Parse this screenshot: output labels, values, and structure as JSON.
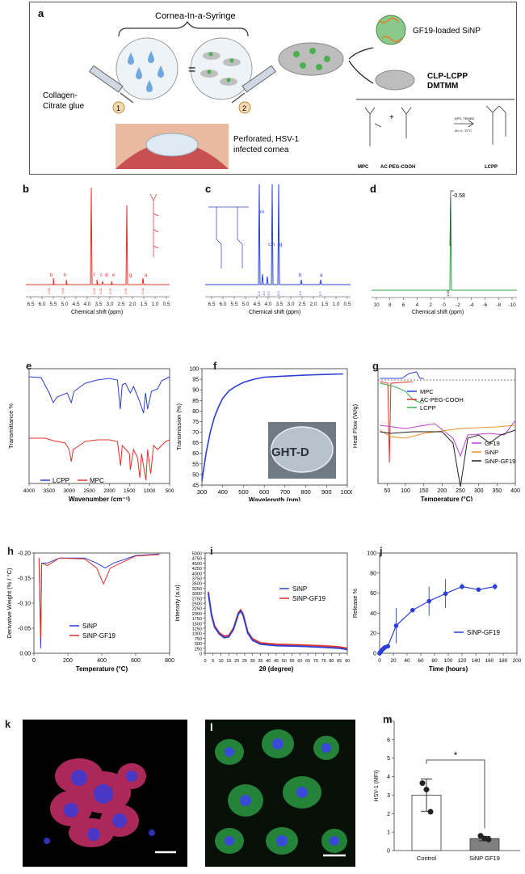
{
  "panel_a": {
    "label": "a",
    "title": "Cornea-In-a-Syringe",
    "collagen_label_1": "Collagen-",
    "collagen_label_2": "Citrate glue",
    "step1": "1",
    "step2": "2",
    "cornea_caption_1": "Perforated, HSV-1",
    "cornea_caption_2": "infected cornea",
    "sinp_label": "GF19-loaded SiNP",
    "clp_label_1": "CLP-LCPP",
    "clp_label_2": "DMTMM",
    "mpc": "MPC",
    "acpeg": "AC-PEG-COOH",
    "lcpp": "LCPP",
    "reaction_1": "APS, TEMED",
    "reaction_2": "2h r.t., 37°C",
    "equals": "="
  },
  "nmr_b": {
    "label": "b",
    "xlabel": "Chemical shift (ppm)",
    "ticks": [
      "6.5",
      "6.0",
      "5.5",
      "5.0",
      "4.5",
      "4.0",
      "3.5",
      "3.0",
      "2.5",
      "2.0",
      "1.5",
      "1.0",
      "0.5"
    ],
    "peak_letters": [
      "b",
      "h",
      "f",
      "c",
      "d",
      "e",
      "g",
      "a"
    ],
    "integrals": [
      "1.04",
      "1.04",
      "2.09",
      "2.01",
      "2.07",
      "2.01",
      "2.04"
    ]
  },
  "nmr_c": {
    "label": "c",
    "xlabel": "Chemical shift (ppm)",
    "ticks": [
      "6.5",
      "6.0",
      "5.5",
      "5.0",
      "4.5",
      "4.0",
      "3.5",
      "3.0",
      "2.5",
      "2.0",
      "1.5",
      "1.0",
      "0.5"
    ],
    "peak_letters": [
      "m",
      "c,h",
      "g",
      "b",
      "a"
    ],
    "integrals": [
      "2.4",
      "1.0",
      "2.5",
      "9.0",
      "1.0",
      "0.7"
    ]
  },
  "nmr_d": {
    "label": "d",
    "peak_label": "-0.58",
    "xlabel": "Chemical shift (ppm)",
    "ticks": [
      "10",
      "8",
      "6",
      "4",
      "2",
      "0",
      "-2",
      "-4",
      "-6",
      "-8",
      "-10"
    ],
    "integral": "1.00"
  },
  "chart_data": [
    {
      "id": "e",
      "type": "line",
      "title": "",
      "xlabel": "Wavenumber (cm⁻¹)",
      "ylabel": "Transmittance %",
      "xlim": [
        4000,
        500
      ],
      "xticks": [
        "4000",
        "3500",
        "3000",
        "2500",
        "2000",
        "1500",
        "1000",
        "500"
      ],
      "series": [
        {
          "name": "LCPP",
          "color": "#2b3fd6"
        },
        {
          "name": "MPC",
          "color": "#e0302a"
        }
      ]
    },
    {
      "id": "f",
      "type": "line",
      "title": "",
      "xlabel": "Wavelength (nm)",
      "ylabel": "Transmission (%)",
      "xlim": [
        300,
        1000
      ],
      "ylim": [
        45,
        100
      ],
      "xticks": [
        "300",
        "400",
        "500",
        "600",
        "700",
        "800",
        "900",
        "1000"
      ],
      "yticks": [
        "45",
        "50",
        "55",
        "60",
        "65",
        "70",
        "75",
        "80",
        "85",
        "90",
        "95",
        "100"
      ],
      "x": [
        300,
        320,
        340,
        360,
        380,
        400,
        430,
        460,
        500,
        550,
        600,
        700,
        800,
        900,
        980
      ],
      "values": [
        47,
        60,
        70,
        77,
        82,
        86,
        89.5,
        91.5,
        93.5,
        95,
        96,
        96.5,
        97,
        97.3,
        97.5
      ],
      "inset_text": "GHT-D",
      "series": [
        {
          "name": "transmission",
          "color": "#2b3fd6"
        }
      ]
    },
    {
      "id": "g",
      "type": "line",
      "title": "",
      "xlabel": "Temperature (°C)",
      "ylabel": "Heat Flow (W/g)",
      "xlim": [
        25,
        400
      ],
      "xticks": [
        "50",
        "100",
        "150",
        "200",
        "250",
        "300",
        "350",
        "400"
      ],
      "series": [
        {
          "name": "MPC",
          "color": "#2b3fd6"
        },
        {
          "name": "AC-PEG-COOH",
          "color": "#e0302a"
        },
        {
          "name": "LCPP",
          "color": "#35b34a"
        },
        {
          "name": "GF19",
          "color": "#c040d0"
        },
        {
          "name": "SiNP",
          "color": "#f0902a"
        },
        {
          "name": "SiNP-GF19",
          "color": "#222222"
        }
      ]
    },
    {
      "id": "h",
      "type": "line",
      "title": "",
      "xlabel": "Temperature (°C)",
      "ylabel": "Derivative Weight (% / °C)",
      "xlim": [
        0,
        800
      ],
      "ylim": [
        -0.2,
        0.0
      ],
      "xticks": [
        "0",
        "200",
        "400",
        "600",
        "800"
      ],
      "yticks": [
        "0.00",
        "-0.05",
        "-0.10",
        "-0.15",
        "-0.20"
      ],
      "series": [
        {
          "name": "SiNP",
          "color": "#2b3fd6"
        },
        {
          "name": "SiNP-GF19",
          "color": "#e0302a"
        }
      ]
    },
    {
      "id": "i",
      "type": "line",
      "title": "",
      "xlabel": "2θ (degree)",
      "ylabel": "Intensity (a.u)",
      "xlim": [
        0,
        90
      ],
      "ylim": [
        0,
        5000
      ],
      "xticks": [
        "0",
        "5",
        "10",
        "15",
        "20",
        "25",
        "30",
        "35",
        "40",
        "45",
        "50",
        "55",
        "60",
        "65",
        "70",
        "75",
        "80",
        "85",
        "90"
      ],
      "yticks": [
        "0",
        "250",
        "500",
        "750",
        "1000",
        "1250",
        "1500",
        "1750",
        "2000",
        "2250",
        "2500",
        "2750",
        "3000",
        "3250",
        "3500",
        "3750",
        "4000",
        "4250",
        "4500",
        "4750",
        "5000"
      ],
      "series": [
        {
          "name": "SiNP",
          "color": "#2b3fd6"
        },
        {
          "name": "SiNP-GF19",
          "color": "#e0302a"
        }
      ]
    },
    {
      "id": "j",
      "type": "line",
      "title": "",
      "xlabel": "Time (hours)",
      "ylabel": "Release %",
      "xlim": [
        0,
        200
      ],
      "ylim": [
        0,
        100
      ],
      "xticks": [
        "0",
        "20",
        "40",
        "60",
        "80",
        "100",
        "120",
        "140",
        "160",
        "180",
        "200"
      ],
      "yticks": [
        "0",
        "20",
        "40",
        "60",
        "80",
        "100"
      ],
      "x": [
        0,
        1,
        2,
        4,
        6,
        8,
        12,
        24,
        48,
        72,
        96,
        120,
        144,
        168
      ],
      "values": [
        0,
        1,
        2,
        3.5,
        5,
        6,
        7,
        27.5,
        43,
        52,
        59.5,
        66.5,
        63.5,
        66.5
      ],
      "errors": [
        0,
        0,
        0.5,
        1,
        1.5,
        1.5,
        2,
        17.5,
        1,
        14.5,
        14.5,
        3,
        1,
        3
      ],
      "series": [
        {
          "name": "SiNP-GF19",
          "color": "#2b3fd6"
        }
      ]
    },
    {
      "id": "m",
      "type": "bar",
      "title": "",
      "xlabel": "",
      "ylabel": "HSV-1 (MFI)",
      "ylim": [
        0,
        7
      ],
      "yticks": [
        "0",
        "1",
        "2",
        "3",
        "4",
        "5",
        "6",
        "7"
      ],
      "categories": [
        "Control",
        "SiNP GF19"
      ],
      "values": [
        3.0,
        0.65
      ],
      "errors": [
        0.87,
        0.12
      ],
      "points": [
        [
          3.65,
          3.3,
          2.1
        ],
        [
          0.8,
          0.65,
          0.6
        ]
      ],
      "bar_colors": [
        "#ffffff",
        "#808080"
      ],
      "significance": "*"
    }
  ],
  "micro_k": {
    "label": "k"
  },
  "micro_l": {
    "label": "l"
  },
  "bar_m_label": "m"
}
